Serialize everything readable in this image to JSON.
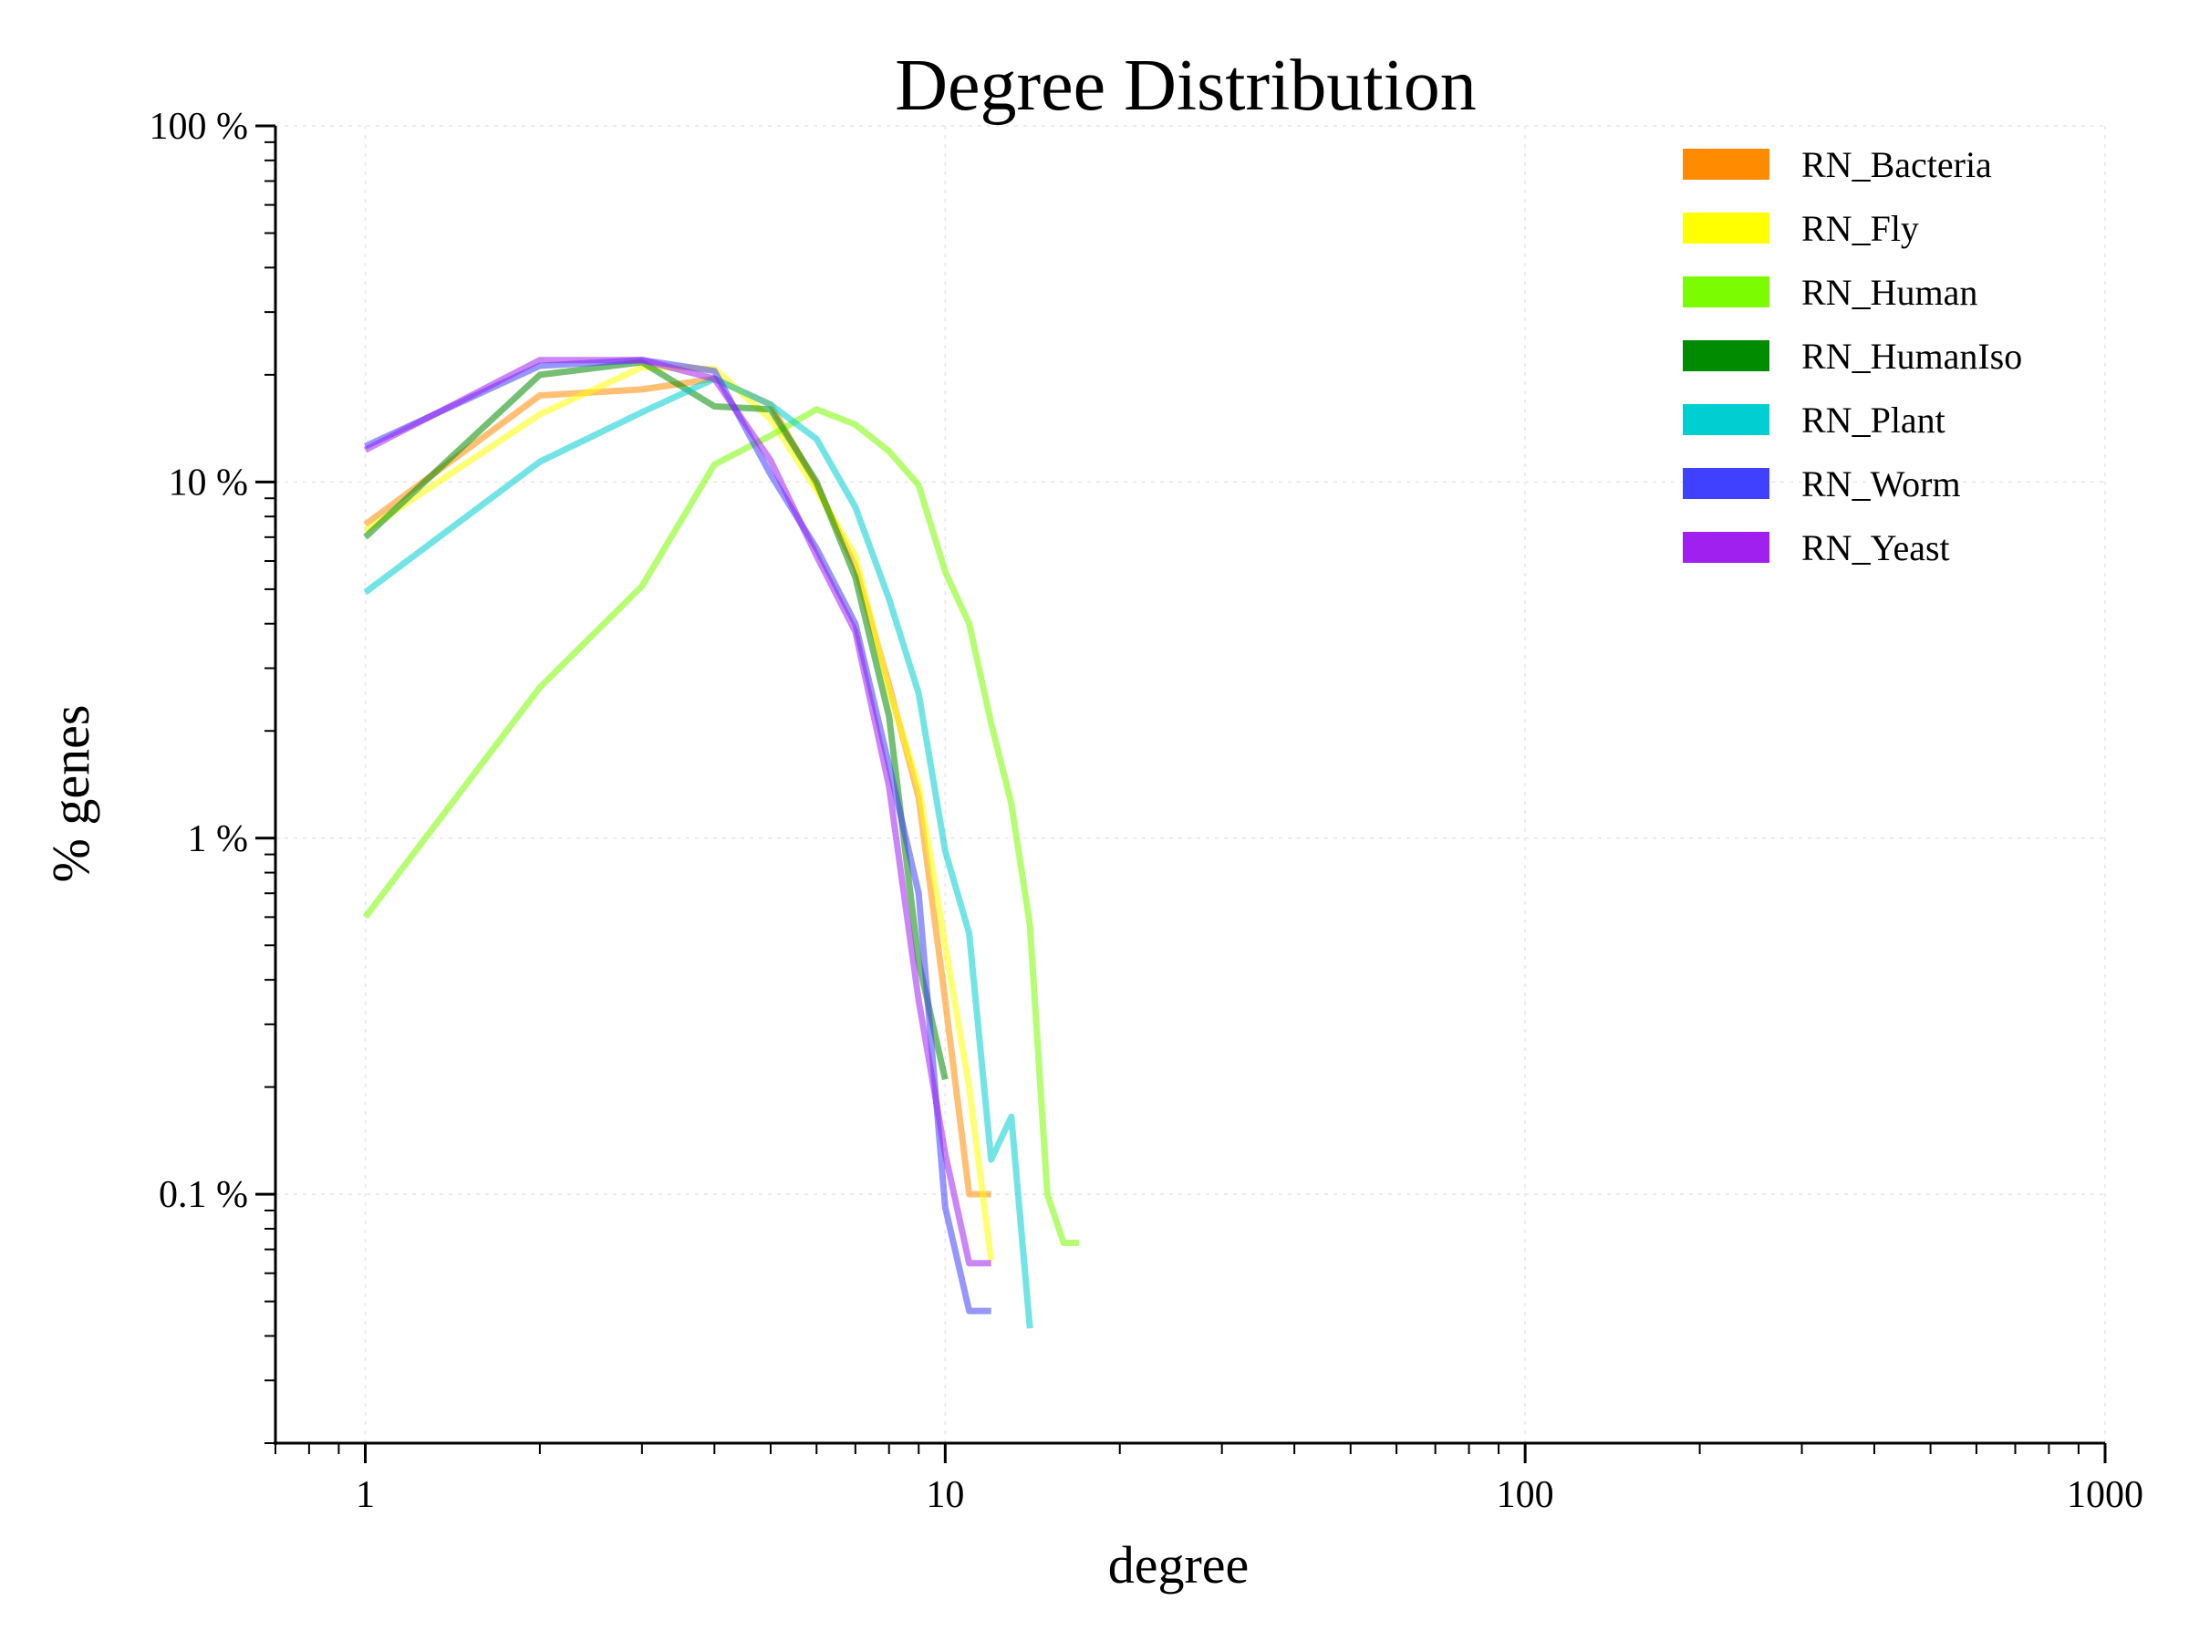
{
  "chart_data": {
    "type": "line",
    "title": "Degree Distribution",
    "xlabel": "degree",
    "ylabel": "% genes",
    "x_scale": "log",
    "y_scale": "log",
    "xlim": [
      0.7,
      1000
    ],
    "ylim": [
      0.02,
      100
    ],
    "x_ticks": [
      {
        "value": 1,
        "label": "1"
      },
      {
        "value": 10,
        "label": "10"
      },
      {
        "value": 100,
        "label": "100"
      },
      {
        "value": 1000,
        "label": "1000"
      }
    ],
    "y_ticks": [
      {
        "value": 100,
        "label": "100 %"
      },
      {
        "value": 10,
        "label": "10 %"
      },
      {
        "value": 1,
        "label": "1 %"
      },
      {
        "value": 0.1,
        "label": "0.1 %"
      }
    ],
    "grid": true,
    "legend_position": "top-right",
    "series": [
      {
        "name": "RN_Bacteria",
        "color": "#ff8c00",
        "x": [
          1,
          2,
          3,
          4,
          5,
          6,
          7,
          8,
          9,
          10,
          11,
          12
        ],
        "y": [
          7.6,
          17.5,
          18.2,
          19.5,
          16.5,
          9.8,
          5.8,
          2.7,
          1.3,
          0.35,
          0.1,
          0.1
        ]
      },
      {
        "name": "RN_Fly",
        "color": "#ffff00",
        "x": [
          1,
          2,
          3,
          4,
          5,
          6,
          7,
          8,
          9,
          10,
          11,
          12
        ],
        "y": [
          7.3,
          15.5,
          21.0,
          20.8,
          15.0,
          9.5,
          6.2,
          2.6,
          1.4,
          0.5,
          0.2,
          0.065
        ]
      },
      {
        "name": "RN_Human",
        "color": "#7cfc00",
        "x": [
          1,
          2,
          3,
          4,
          5,
          6,
          7,
          8,
          9,
          10,
          11,
          12,
          13,
          14,
          15,
          16,
          17
        ],
        "y": [
          0.6,
          2.65,
          5.1,
          11.2,
          13.5,
          16.0,
          14.5,
          12.2,
          9.8,
          5.6,
          4.0,
          2.1,
          1.25,
          0.57,
          0.1,
          0.073,
          0.073
        ]
      },
      {
        "name": "RN_HumanIso",
        "color": "#008b00",
        "x": [
          1,
          2,
          3,
          4,
          5,
          6,
          7,
          8,
          9,
          10
        ],
        "y": [
          7.0,
          20.0,
          21.7,
          16.3,
          16.0,
          10.0,
          5.4,
          2.2,
          0.45,
          0.21
        ]
      },
      {
        "name": "RN_Plant",
        "color": "#00ced1",
        "x": [
          1,
          2,
          3,
          4,
          5,
          6,
          7,
          8,
          9,
          10,
          11,
          12,
          13,
          14
        ],
        "y": [
          4.9,
          11.4,
          15.7,
          19.5,
          16.5,
          13.2,
          8.5,
          4.7,
          2.55,
          0.92,
          0.54,
          0.125,
          0.165,
          0.042
        ]
      },
      {
        "name": "RN_Worm",
        "color": "#4040ff",
        "x": [
          1,
          2,
          3,
          4,
          5,
          6,
          7,
          8,
          9,
          10,
          11,
          12
        ],
        "y": [
          12.6,
          21.2,
          22.0,
          20.5,
          10.5,
          6.5,
          4.0,
          1.6,
          0.7,
          0.092,
          0.047,
          0.047
        ]
      },
      {
        "name": "RN_Yeast",
        "color": "#a020f0",
        "x": [
          1,
          2,
          3,
          4,
          5,
          6,
          7,
          8,
          9,
          10,
          11,
          12
        ],
        "y": [
          12.3,
          22.0,
          22.0,
          19.5,
          11.5,
          6.2,
          3.8,
          1.4,
          0.35,
          0.13,
          0.064,
          0.064
        ]
      }
    ]
  }
}
